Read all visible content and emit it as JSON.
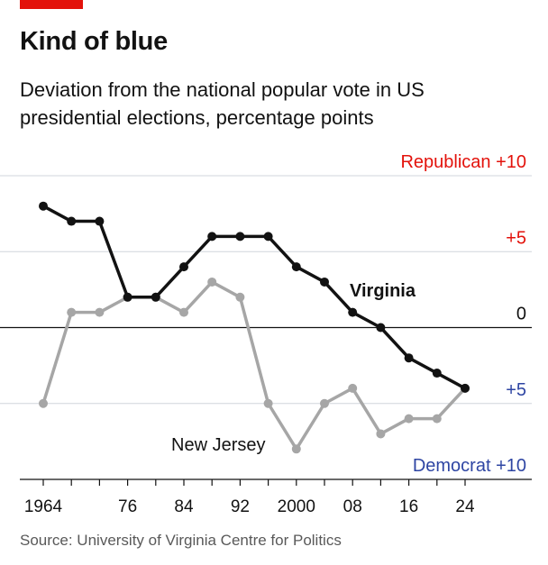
{
  "header": {
    "title": "Kind of blue",
    "subtitle": "Deviation from the national popular vote in US presidential elections, percentage points"
  },
  "footer": {
    "source": "Source: University of Virginia Centre for Politics"
  },
  "colors": {
    "accent": "#e3120b",
    "republican": "#e3120b",
    "democrat": "#2e45a3",
    "virginia": "#121212",
    "new_jersey": "#a6a6a6"
  },
  "chart_data": {
    "type": "line",
    "x": [
      1964,
      1968,
      1972,
      1976,
      1980,
      1984,
      1988,
      1992,
      1996,
      2000,
      2004,
      2008,
      2012,
      2016,
      2020,
      2024
    ],
    "xticks": [
      1964,
      1976,
      1984,
      1992,
      2000,
      2008,
      2016,
      2024
    ],
    "xtick_labels": [
      "1964",
      "76",
      "84",
      "92",
      "2000",
      "08",
      "16",
      "24"
    ],
    "ylim": [
      -10,
      10
    ],
    "y_axis_labels": [
      {
        "value": 10,
        "text": "Republican +10",
        "color": "#e3120b"
      },
      {
        "value": 5,
        "text": "+5",
        "color": "#e3120b"
      },
      {
        "value": 0,
        "text": "0",
        "color": "#121212"
      },
      {
        "value": -5,
        "text": "+5",
        "color": "#2e45a3"
      },
      {
        "value": -10,
        "text": "Democrat +10",
        "color": "#2e45a3"
      }
    ],
    "series": [
      {
        "name": "Virginia",
        "color": "#121212",
        "values": [
          8,
          7,
          7,
          2,
          2,
          4,
          6,
          6,
          6,
          4,
          3,
          1,
          0,
          -2,
          -3,
          -4
        ]
      },
      {
        "name": "New Jersey",
        "color": "#a6a6a6",
        "values": [
          -5,
          1,
          1,
          2,
          2,
          1,
          3,
          2,
          -5,
          -8,
          -5,
          -4,
          -7,
          -6,
          -6,
          -4
        ]
      }
    ]
  }
}
